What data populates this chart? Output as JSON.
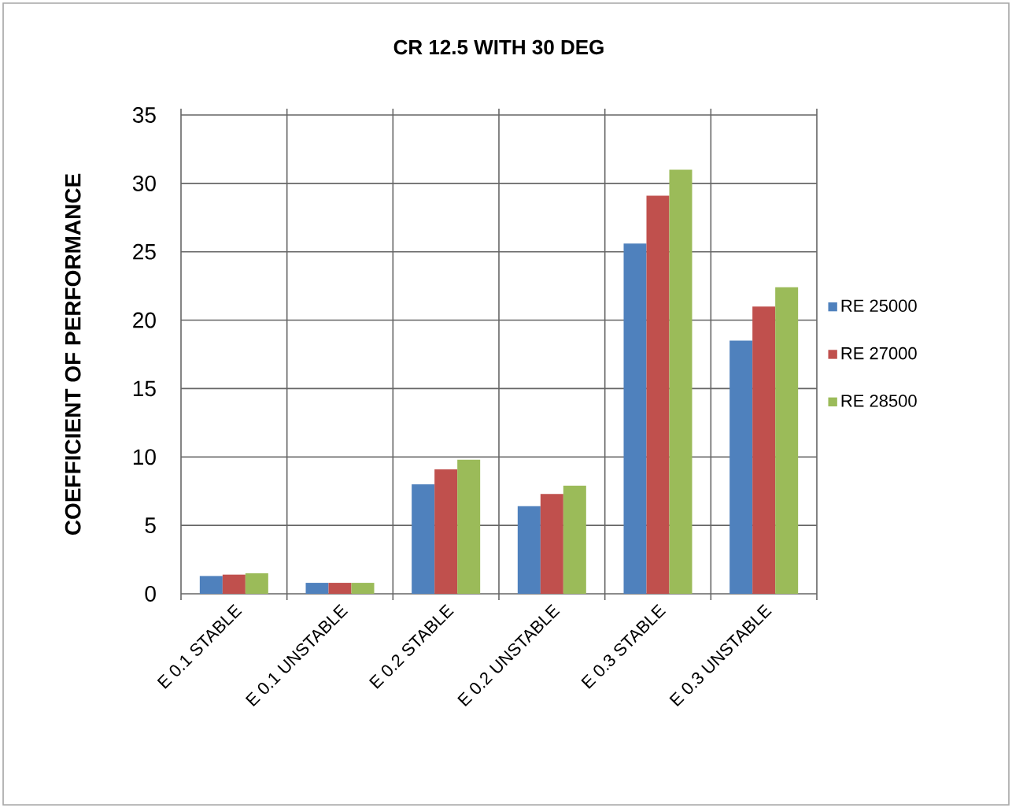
{
  "chart_data": {
    "type": "bar",
    "title": "CR 12.5 WITH 30 DEG",
    "ylabel": "COEFFICIENT OF PERFORMANCE",
    "categories": [
      "E 0.1 STABLE",
      "E 0.1 UNSTABLE",
      "E 0.2 STABLE",
      "E 0.2 UNSTABLE",
      "E 0.3 STABLE",
      "E 0.3 UNSTABLE"
    ],
    "series": [
      {
        "name": "RE 25000",
        "color": "#4f81bd",
        "values": [
          1.3,
          0.8,
          8.0,
          6.4,
          25.6,
          18.5
        ]
      },
      {
        "name": "RE 27000",
        "color": "#c0504d",
        "values": [
          1.4,
          0.8,
          9.1,
          7.3,
          29.1,
          21.0
        ]
      },
      {
        "name": "RE 28500",
        "color": "#9bbb59",
        "values": [
          1.5,
          0.8,
          9.8,
          7.9,
          31.0,
          22.4
        ]
      }
    ],
    "ylim": [
      0,
      35
    ],
    "yticks": [
      0,
      5,
      10,
      15,
      20,
      25,
      30,
      35
    ],
    "grid": true,
    "legend": "right"
  }
}
